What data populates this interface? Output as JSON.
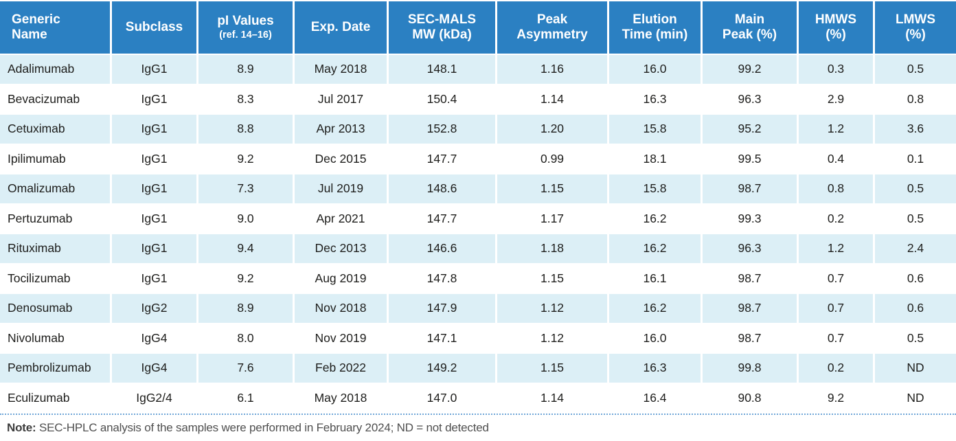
{
  "colors": {
    "header_bg": "#2b80c2",
    "row_alt_bg": "#dceff6",
    "note_rule": "#6fa6d8"
  },
  "table": {
    "columns": [
      {
        "id": "generic-name",
        "label": "Generic Name",
        "sublabel": ""
      },
      {
        "id": "subclass",
        "label": "Subclass",
        "sublabel": ""
      },
      {
        "id": "pi-values",
        "label": "pI Values",
        "sublabel": "(ref. 14–16)"
      },
      {
        "id": "exp-date",
        "label": "Exp. Date",
        "sublabel": ""
      },
      {
        "id": "sec-mals-mw",
        "label": "SEC-MALS MW (kDa)",
        "sublabel": ""
      },
      {
        "id": "peak-asymmetry",
        "label": "Peak Asymmetry",
        "sublabel": ""
      },
      {
        "id": "elution-time",
        "label": "Elution Time (min)",
        "sublabel": ""
      },
      {
        "id": "main-peak",
        "label": "Main Peak (%)",
        "sublabel": ""
      },
      {
        "id": "hmws",
        "label": "HMWS (%)",
        "sublabel": ""
      },
      {
        "id": "lmws",
        "label": "LMWS (%)",
        "sublabel": ""
      }
    ],
    "rows": [
      [
        "Adalimumab",
        "IgG1",
        "8.9",
        "May 2018",
        "148.1",
        "1.16",
        "16.0",
        "99.2",
        "0.3",
        "0.5"
      ],
      [
        "Bevacizumab",
        "IgG1",
        "8.3",
        "Jul 2017",
        "150.4",
        "1.14",
        "16.3",
        "96.3",
        "2.9",
        "0.8"
      ],
      [
        "Cetuximab",
        "IgG1",
        "8.8",
        "Apr 2013",
        "152.8",
        "1.20",
        "15.8",
        "95.2",
        "1.2",
        "3.6"
      ],
      [
        "Ipilimumab",
        "IgG1",
        "9.2",
        "Dec 2015",
        "147.7",
        "0.99",
        "18.1",
        "99.5",
        "0.4",
        "0.1"
      ],
      [
        "Omalizumab",
        "IgG1",
        "7.3",
        "Jul 2019",
        "148.6",
        "1.15",
        "15.8",
        "98.7",
        "0.8",
        "0.5"
      ],
      [
        "Pertuzumab",
        "IgG1",
        "9.0",
        "Apr 2021",
        "147.7",
        "1.17",
        "16.2",
        "99.3",
        "0.2",
        "0.5"
      ],
      [
        "Rituximab",
        "IgG1",
        "9.4",
        "Dec 2013",
        "146.6",
        "1.18",
        "16.2",
        "96.3",
        "1.2",
        "2.4"
      ],
      [
        "Tocilizumab",
        "IgG1",
        "9.2",
        "Aug 2019",
        "147.8",
        "1.15",
        "16.1",
        "98.7",
        "0.7",
        "0.6"
      ],
      [
        "Denosumab",
        "IgG2",
        "8.9",
        "Nov 2018",
        "147.9",
        "1.12",
        "16.2",
        "98.7",
        "0.7",
        "0.6"
      ],
      [
        "Nivolumab",
        "IgG4",
        "8.0",
        "Nov 2019",
        "147.1",
        "1.12",
        "16.0",
        "98.7",
        "0.7",
        "0.5"
      ],
      [
        "Pembrolizumab",
        "IgG4",
        "7.6",
        "Feb 2022",
        "149.2",
        "1.15",
        "16.3",
        "99.8",
        "0.2",
        "ND"
      ],
      [
        "Eculizumab",
        "IgG2/4",
        "6.1",
        "May 2018",
        "147.0",
        "1.14",
        "16.4",
        "90.8",
        "9.2",
        "ND"
      ]
    ]
  },
  "note": {
    "label": "Note:",
    "text": " SEC-HPLC analysis of the samples were performed in February 2024; ND = not detected"
  }
}
